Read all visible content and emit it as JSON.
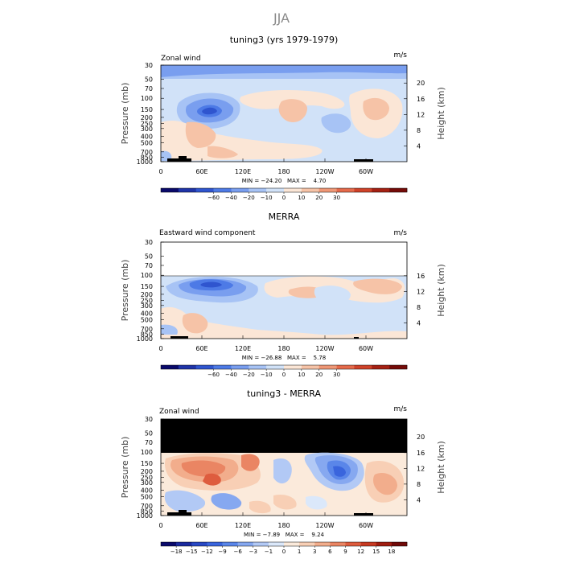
{
  "page": {
    "title": "JJA"
  },
  "panels": [
    {
      "id": "p1",
      "title": "tuning3 (yrs 1979-1979)",
      "left_label": "Zonal wind",
      "right_label": "m/s",
      "y_title": "Pressure (mb)",
      "y2_title": "Height (km)",
      "stats": "MIN = −24.20   MAX =    4.70",
      "masked_top": false
    },
    {
      "id": "p2",
      "title": "MERRA",
      "left_label": "Eastward wind component",
      "right_label": "m/s",
      "y_title": "Pressure (mb)",
      "y2_title": "Height (km)",
      "stats": "MIN = −26.88   MAX =    5.78",
      "masked_top": true
    },
    {
      "id": "p3",
      "title": "tuning3 - MERRA",
      "left_label": "Zonal wind",
      "right_label": "m/s",
      "y_title": "Pressure (mb)",
      "y2_title": "Height (km)",
      "stats": "MIN = −7.89   MAX =    9.24",
      "masked_top": true
    }
  ],
  "chart_data": [
    {
      "type": "heatmap",
      "title": "tuning3 (yrs 1979-1979)",
      "variable": "Zonal wind",
      "units": "m/s",
      "xlabel": "",
      "x_ticks": [
        "0",
        "60E",
        "120E",
        "180",
        "120W",
        "60W"
      ],
      "x_tick_lon": [
        0,
        60,
        120,
        180,
        240,
        300
      ],
      "xlim": [
        0,
        360
      ],
      "ylabel": "Pressure (mb)",
      "y_ticks": [
        "30",
        "50",
        "70",
        "100",
        "150",
        "200",
        "250",
        "300",
        "400",
        "500",
        "700",
        "850",
        "1000"
      ],
      "y_tick_values": [
        30,
        50,
        70,
        100,
        150,
        200,
        250,
        300,
        400,
        500,
        700,
        850,
        1000
      ],
      "ylim": [
        1000,
        30
      ],
      "y2label": "Height (km)",
      "y2_ticks": [
        "20",
        "16",
        "12",
        "8",
        "4"
      ],
      "y2_tick_values": [
        20,
        16,
        12,
        8,
        4
      ],
      "colorbar": {
        "labels": [
          "−60",
          "−40",
          "−20",
          "−10",
          "0",
          "10",
          "20",
          "30"
        ],
        "colors": [
          "#0a0a6b",
          "#1f34a8",
          "#2f55cf",
          "#4d7ae6",
          "#799eef",
          "#a7c3f5",
          "#d1e2f8",
          "#fbe6d6",
          "#f6c3a7",
          "#ef9776",
          "#e56a4b",
          "#cf4229",
          "#a52113",
          "#750b08"
        ]
      },
      "min": -24.2,
      "max": 4.7
    },
    {
      "type": "heatmap",
      "title": "MERRA",
      "variable": "Eastward wind component",
      "units": "m/s",
      "xlabel": "",
      "x_ticks": [
        "0",
        "60E",
        "120E",
        "180",
        "120W",
        "60W"
      ],
      "x_tick_lon": [
        0,
        60,
        120,
        180,
        240,
        300
      ],
      "xlim": [
        0,
        360
      ],
      "ylabel": "Pressure (mb)",
      "y_ticks": [
        "30",
        "50",
        "70",
        "100",
        "150",
        "200",
        "250",
        "300",
        "400",
        "500",
        "700",
        "850",
        "1000"
      ],
      "y_tick_values": [
        30,
        50,
        70,
        100,
        150,
        200,
        250,
        300,
        400,
        500,
        700,
        850,
        1000
      ],
      "ylim": [
        1000,
        30
      ],
      "y2label": "Height (km)",
      "y2_ticks": [
        "16",
        "12",
        "8",
        "4"
      ],
      "y2_tick_values": [
        16,
        12,
        8,
        4
      ],
      "colorbar": {
        "labels": [
          "−60",
          "−40",
          "−20",
          "−10",
          "0",
          "10",
          "20",
          "30"
        ],
        "colors": [
          "#0a0a6b",
          "#1f34a8",
          "#2f55cf",
          "#4d7ae6",
          "#799eef",
          "#a7c3f5",
          "#d1e2f8",
          "#fbe6d6",
          "#f6c3a7",
          "#ef9776",
          "#e56a4b",
          "#cf4229",
          "#a52113",
          "#750b08"
        ]
      },
      "min": -26.88,
      "max": 5.78
    },
    {
      "type": "heatmap",
      "title": "tuning3 - MERRA",
      "variable": "Zonal wind",
      "units": "m/s",
      "xlabel": "",
      "x_ticks": [
        "0",
        "60E",
        "120E",
        "180",
        "120W",
        "60W"
      ],
      "x_tick_lon": [
        0,
        60,
        120,
        180,
        240,
        300
      ],
      "xlim": [
        0,
        360
      ],
      "ylabel": "Pressure (mb)",
      "y_ticks": [
        "30",
        "50",
        "70",
        "100",
        "150",
        "200",
        "250",
        "300",
        "400",
        "500",
        "700",
        "850",
        "1000"
      ],
      "y_tick_values": [
        30,
        50,
        70,
        100,
        150,
        200,
        250,
        300,
        400,
        500,
        700,
        850,
        1000
      ],
      "ylim": [
        1000,
        30
      ],
      "y2label": "Height (km)",
      "y2_ticks": [
        "20",
        "16",
        "12",
        "8",
        "4"
      ],
      "y2_tick_values": [
        20,
        16,
        12,
        8,
        4
      ],
      "colorbar": {
        "labels": [
          "−18",
          "−15",
          "−12",
          "−9",
          "−6",
          "−3",
          "−1",
          "0",
          "1",
          "3",
          "6",
          "9",
          "12",
          "15",
          "18"
        ],
        "colors": [
          "#0a0a6b",
          "#1a2a9e",
          "#2848c4",
          "#3a65dd",
          "#5a86e9",
          "#86a8f0",
          "#b2c9f5",
          "#dbe8fa",
          "#fbeadb",
          "#f8cfb5",
          "#f2ad8c",
          "#ea8563",
          "#de5c3e",
          "#c73a22",
          "#a01d10",
          "#700a08"
        ]
      },
      "min": -7.89,
      "max": 9.24
    }
  ]
}
